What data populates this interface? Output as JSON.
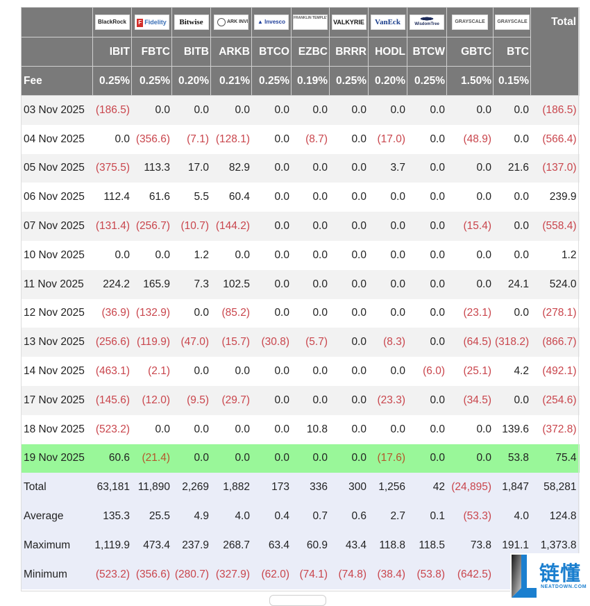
{
  "table": {
    "columns": [
      {
        "issuer": "BlackRock",
        "ticker": "IBIT",
        "fee": "0.25%"
      },
      {
        "issuer": "Fidelity",
        "ticker": "FBTC",
        "fee": "0.25%"
      },
      {
        "issuer": "Bitwise",
        "ticker": "BITB",
        "fee": "0.20%"
      },
      {
        "issuer": "ARK INVEST",
        "ticker": "ARKB",
        "fee": "0.21%"
      },
      {
        "issuer": "Invesco",
        "ticker": "BTCO",
        "fee": "0.25%"
      },
      {
        "issuer": "FRANKLIN TEMPLETON",
        "ticker": "EZBC",
        "fee": "0.19%"
      },
      {
        "issuer": "VALKYRIE",
        "ticker": "BRRR",
        "fee": "0.25%"
      },
      {
        "issuer": "VanEck",
        "ticker": "HODL",
        "fee": "0.20%"
      },
      {
        "issuer": "WisdomTree",
        "ticker": "BTCW",
        "fee": "0.25%"
      },
      {
        "issuer": "GRAYSCALE",
        "ticker": "GBTC",
        "fee": "1.50%"
      },
      {
        "issuer": "GRAYSCALE",
        "ticker": "BTC",
        "fee": "0.15%"
      }
    ],
    "total_header": "Total",
    "fee_label": "Fee",
    "rows": [
      {
        "date": "03 Nov 2025",
        "values": [
          "(186.5)",
          "0.0",
          "0.0",
          "0.0",
          "0.0",
          "0.0",
          "0.0",
          "0.0",
          "0.0",
          "0.0",
          "0.0"
        ],
        "total": "(186.5)"
      },
      {
        "date": "04 Nov 2025",
        "values": [
          "0.0",
          "(356.6)",
          "(7.1)",
          "(128.1)",
          "0.0",
          "(8.7)",
          "0.0",
          "(17.0)",
          "0.0",
          "(48.9)",
          "0.0"
        ],
        "total": "(566.4)"
      },
      {
        "date": "05 Nov 2025",
        "values": [
          "(375.5)",
          "113.3",
          "17.0",
          "82.9",
          "0.0",
          "0.0",
          "0.0",
          "3.7",
          "0.0",
          "0.0",
          "21.6"
        ],
        "total": "(137.0)"
      },
      {
        "date": "06 Nov 2025",
        "values": [
          "112.4",
          "61.6",
          "5.5",
          "60.4",
          "0.0",
          "0.0",
          "0.0",
          "0.0",
          "0.0",
          "0.0",
          "0.0"
        ],
        "total": "239.9"
      },
      {
        "date": "07 Nov 2025",
        "values": [
          "(131.4)",
          "(256.7)",
          "(10.7)",
          "(144.2)",
          "0.0",
          "0.0",
          "0.0",
          "0.0",
          "0.0",
          "(15.4)",
          "0.0"
        ],
        "total": "(558.4)"
      },
      {
        "date": "10 Nov 2025",
        "values": [
          "0.0",
          "0.0",
          "1.2",
          "0.0",
          "0.0",
          "0.0",
          "0.0",
          "0.0",
          "0.0",
          "0.0",
          "0.0"
        ],
        "total": "1.2"
      },
      {
        "date": "11 Nov 2025",
        "values": [
          "224.2",
          "165.9",
          "7.3",
          "102.5",
          "0.0",
          "0.0",
          "0.0",
          "0.0",
          "0.0",
          "0.0",
          "24.1"
        ],
        "total": "524.0"
      },
      {
        "date": "12 Nov 2025",
        "values": [
          "(36.9)",
          "(132.9)",
          "0.0",
          "(85.2)",
          "0.0",
          "0.0",
          "0.0",
          "0.0",
          "0.0",
          "(23.1)",
          "0.0"
        ],
        "total": "(278.1)"
      },
      {
        "date": "13 Nov 2025",
        "values": [
          "(256.6)",
          "(119.9)",
          "(47.0)",
          "(15.7)",
          "(30.8)",
          "(5.7)",
          "0.0",
          "(8.3)",
          "0.0",
          "(64.5)",
          "(318.2)"
        ],
        "total": "(866.7)"
      },
      {
        "date": "14 Nov 2025",
        "values": [
          "(463.1)",
          "(2.1)",
          "0.0",
          "0.0",
          "0.0",
          "0.0",
          "0.0",
          "0.0",
          "(6.0)",
          "(25.1)",
          "4.2"
        ],
        "total": "(492.1)"
      },
      {
        "date": "17 Nov 2025",
        "values": [
          "(145.6)",
          "(12.0)",
          "(9.5)",
          "(29.7)",
          "0.0",
          "0.0",
          "0.0",
          "(23.3)",
          "0.0",
          "(34.5)",
          "0.0"
        ],
        "total": "(254.6)"
      },
      {
        "date": "18 Nov 2025",
        "values": [
          "(523.2)",
          "0.0",
          "0.0",
          "0.0",
          "0.0",
          "10.8",
          "0.0",
          "0.0",
          "0.0",
          "0.0",
          "139.6"
        ],
        "total": "(372.8)"
      },
      {
        "date": "19 Nov 2025",
        "values": [
          "60.6",
          "(21.4)",
          "0.0",
          "0.0",
          "0.0",
          "0.0",
          "0.0",
          "(17.6)",
          "0.0",
          "0.0",
          "53.8"
        ],
        "total": "75.4",
        "highlight": true
      }
    ],
    "stats": [
      {
        "label": "Total",
        "values": [
          "63,181",
          "11,890",
          "2,269",
          "1,882",
          "173",
          "336",
          "300",
          "1,256",
          "42",
          "(24,895)",
          "1,847"
        ],
        "total": "58,281"
      },
      {
        "label": "Average",
        "values": [
          "135.3",
          "25.5",
          "4.9",
          "4.0",
          "0.4",
          "0.7",
          "0.6",
          "2.7",
          "0.1",
          "(53.3)",
          "4.0"
        ],
        "total": "124.8"
      },
      {
        "label": "Maximum",
        "values": [
          "1,119.9",
          "473.4",
          "237.9",
          "268.7",
          "63.4",
          "60.9",
          "43.4",
          "118.8",
          "118.5",
          "73.8",
          "191.1"
        ],
        "total": "1,373.8"
      },
      {
        "label": "Minimum",
        "values": [
          "(523.2)",
          "(356.6)",
          "(280.7)",
          "(327.9)",
          "(62.0)",
          "(74.1)",
          "(74.8)",
          "(38.4)",
          "(53.8)",
          "(642.5)",
          "(31"
        ],
        "total": ""
      }
    ]
  },
  "colors": {
    "header_bg": "#7a7a7a",
    "negative_text": "#c9454c",
    "highlight_row_bg": "#99f799",
    "stats_bg": "#eaedf8",
    "watermark_blue": "#1b7fcf"
  },
  "watermark": {
    "chinese": "链懂",
    "english": "NEATDOWN.COM"
  }
}
